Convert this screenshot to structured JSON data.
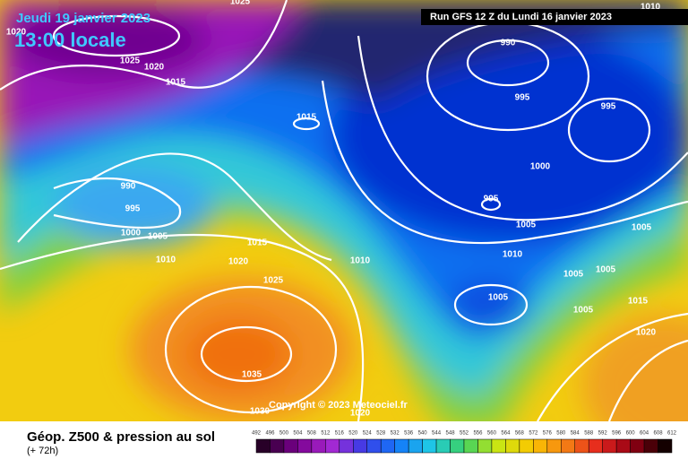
{
  "header": {
    "date": "Jeudi 19 janvier 2023",
    "time": "13:00 locale",
    "run": "Run GFS 12 Z du Lundi 16 janvier 2023"
  },
  "copyright": "Copyright © 2023 Meteociel.fr",
  "isobar_labels": [
    "1025",
    "1010",
    "1020",
    "1025",
    "1020",
    "1015",
    "990",
    "995",
    "995",
    "1015",
    "1000",
    "990",
    "995",
    "995",
    "1000",
    "1005",
    "1005",
    "1005",
    "1015",
    "1010",
    "1020",
    "1010",
    "1010",
    "1005",
    "1005",
    "1025",
    "1005",
    "1015",
    "1005",
    "1020",
    "1035",
    "1030",
    "1020"
  ],
  "footer": {
    "title": "Géop. Z500 & pression au sol",
    "subtitle": "(+ 72h)",
    "scale": [
      "492",
      "496",
      "500",
      "504",
      "508",
      "512",
      "516",
      "520",
      "524",
      "528",
      "532",
      "536",
      "540",
      "544",
      "548",
      "552",
      "556",
      "560",
      "564",
      "568",
      "572",
      "576",
      "580",
      "584",
      "588",
      "592",
      "596",
      "600",
      "604",
      "608",
      "612"
    ]
  }
}
